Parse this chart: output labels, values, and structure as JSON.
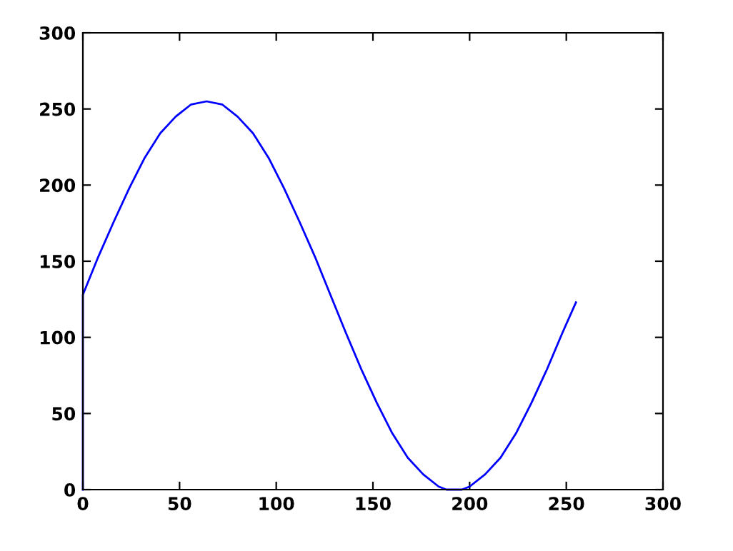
{
  "chart_data": {
    "type": "line",
    "x": [
      0,
      0,
      8,
      16,
      24,
      32,
      40,
      48,
      56,
      64,
      72,
      80,
      88,
      96,
      104,
      112,
      120,
      128,
      136,
      144,
      152,
      160,
      168,
      176,
      184,
      188,
      192,
      196,
      200,
      208,
      216,
      224,
      232,
      240,
      248,
      255
    ],
    "series": [
      {
        "color": "#0000ff",
        "values": [
          0,
          128,
          153,
          176,
          198,
          218,
          234,
          245,
          253,
          255,
          253,
          245,
          234,
          218,
          198,
          176,
          153,
          128,
          103,
          79,
          57,
          37,
          21,
          10,
          2,
          0,
          0,
          0,
          2,
          10,
          21,
          37,
          57,
          79,
          103,
          123
        ]
      }
    ],
    "xlim": [
      0,
      300
    ],
    "xticks": [
      0,
      50,
      100,
      150,
      200,
      250,
      300
    ],
    "ylim": [
      0,
      300
    ],
    "yticks": [
      0,
      50,
      100,
      150,
      200,
      250,
      300
    ],
    "grid": false,
    "legend": false,
    "marker": "none",
    "line_style": "solid"
  }
}
